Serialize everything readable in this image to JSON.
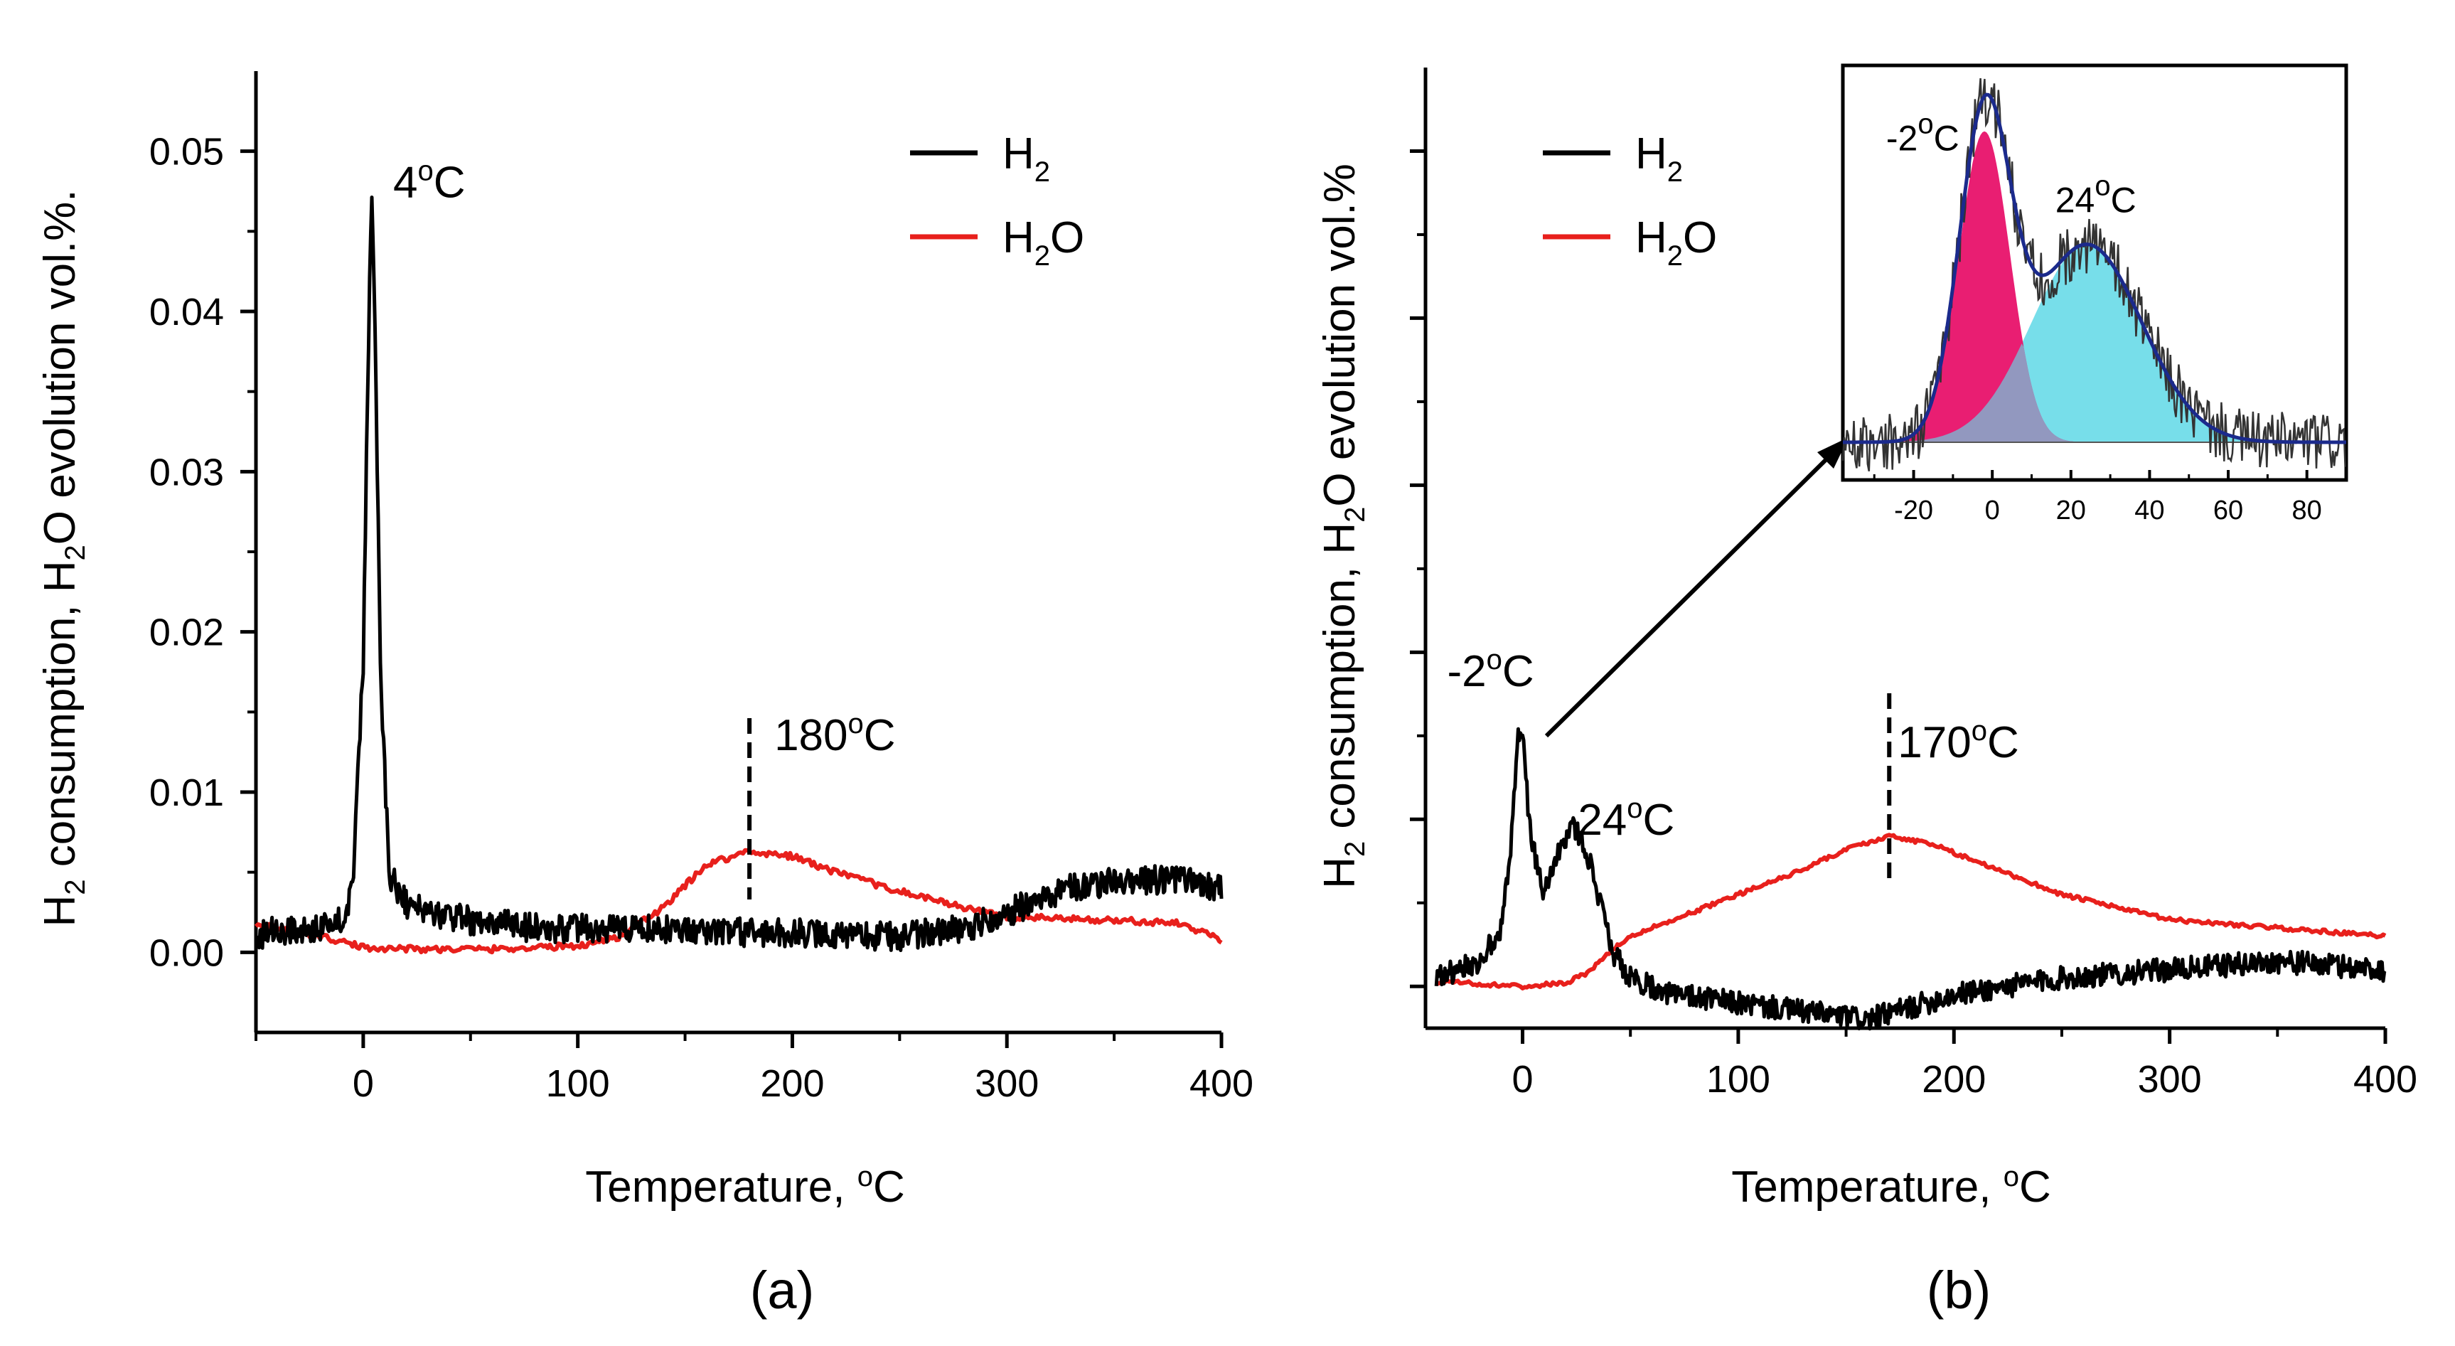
{
  "chart_data": [
    {
      "panel": "(a)",
      "type": "line",
      "xlabel": "Temperature, °C",
      "ylabel_parts": [
        "H",
        "2",
        " consumption, H",
        "2",
        "O evolution vol.%."
      ],
      "xlim": [
        -50,
        400
      ],
      "ylim": [
        -0.005,
        0.055
      ],
      "xticks": [
        0,
        100,
        200,
        300,
        400
      ],
      "yticks": [
        0.0,
        0.01,
        0.02,
        0.03,
        0.04,
        0.05
      ],
      "ytick_labels": [
        "0.00",
        "0.01",
        "0.02",
        "0.03",
        "0.04",
        "0.05"
      ],
      "series": [
        {
          "name": "H2",
          "name_main": "H",
          "name_sub": "2",
          "name_rest": "",
          "color": "#000000",
          "x": [
            -50,
            -40,
            -30,
            -20,
            -10,
            -5,
            0,
            2,
            4,
            6,
            8,
            12,
            20,
            30,
            50,
            80,
            100,
            150,
            180,
            200,
            250,
            280,
            300,
            330,
            350,
            380,
            400
          ],
          "y": [
            0.001,
            0.0015,
            0.0012,
            0.0015,
            0.002,
            0.004,
            0.018,
            0.035,
            0.048,
            0.035,
            0.018,
            0.005,
            0.003,
            0.0025,
            0.002,
            0.0015,
            0.0015,
            0.0015,
            0.0012,
            0.0012,
            0.001,
            0.0015,
            0.0025,
            0.004,
            0.0045,
            0.0045,
            0.004
          ]
        },
        {
          "name": "H2O",
          "name_main": "H",
          "name_sub": "2",
          "name_rest": "O",
          "color": "#e8201c",
          "x": [
            -50,
            -30,
            -20,
            0,
            30,
            60,
            100,
            120,
            140,
            160,
            180,
            200,
            220,
            250,
            280,
            300,
            350,
            380,
            400
          ],
          "y": [
            0.0018,
            0.0012,
            0.001,
            0.0003,
            0.0002,
            0.0002,
            0.0004,
            0.001,
            0.0028,
            0.0055,
            0.0063,
            0.006,
            0.005,
            0.0038,
            0.0028,
            0.0022,
            0.002,
            0.0018,
            0.0008
          ]
        }
      ],
      "annotations": [
        {
          "value": "4",
          "unit": "°C",
          "x": 4,
          "y": 0.048
        },
        {
          "value": "180",
          "unit": "°C",
          "x": 180,
          "y": 0.0063
        }
      ]
    },
    {
      "panel": "(b)",
      "type": "line",
      "xlabel": "Temperature, °C",
      "ylabel_parts": [
        "H",
        "2",
        " consumption, H",
        "2",
        "O evolution vol.%"
      ],
      "xlim": [
        -45,
        400
      ],
      "xticks": [
        0,
        100,
        200,
        300,
        400
      ],
      "ylim": [
        -0.25,
        5.5
      ],
      "ytick_count": 6,
      "series": [
        {
          "name": "H2",
          "name_main": "H",
          "name_sub": "2",
          "name_rest": "",
          "color": "#000000",
          "x": [
            -40,
            -20,
            -10,
            -5,
            -2,
            0,
            3,
            6,
            10,
            14,
            18,
            24,
            30,
            36,
            42,
            50,
            70,
            100,
            130,
            160,
            200,
            250,
            300,
            350,
            400
          ],
          "y": [
            0.05,
            0.15,
            0.35,
            0.9,
            1.5,
            1.5,
            1.0,
            0.75,
            0.55,
            0.7,
            0.85,
            0.95,
            0.8,
            0.5,
            0.2,
            0.05,
            -0.05,
            -0.1,
            -0.15,
            -0.2,
            -0.05,
            0.05,
            0.1,
            0.15,
            0.1
          ]
        },
        {
          "name": "H2O",
          "name_main": "H",
          "name_sub": "2",
          "name_rest": "O",
          "color": "#e8201c",
          "x": [
            -40,
            0,
            20,
            30,
            40,
            50,
            80,
            100,
            130,
            150,
            170,
            190,
            220,
            250,
            300,
            350,
            400
          ],
          "y": [
            0.03,
            0.0,
            0.02,
            0.08,
            0.2,
            0.3,
            0.45,
            0.55,
            0.7,
            0.82,
            0.9,
            0.85,
            0.7,
            0.55,
            0.4,
            0.35,
            0.3
          ]
        }
      ],
      "annotations": [
        {
          "value": "-2",
          "unit": "°C",
          "x": -2,
          "y": 1.5
        },
        {
          "value": "24",
          "unit": "°C",
          "x": 24,
          "y": 0.95
        },
        {
          "value": "170",
          "unit": "°C",
          "x": 170,
          "y": 0.9
        }
      ],
      "inset": {
        "xlim": [
          -38,
          90
        ],
        "xticks": [
          -20,
          0,
          20,
          40,
          60,
          80
        ],
        "ylim": [
          -0.2,
          2.0
        ],
        "peaks": [
          {
            "center": -2,
            "amplitude": 1.65,
            "width": 6.5,
            "fill": "#e8126a",
            "label_value": "-2",
            "label_unit": "°C"
          },
          {
            "center": 24,
            "amplitude": 1.05,
            "width": 14,
            "fill": "#5fd8e6",
            "label_value": "24",
            "label_unit": "°C"
          }
        ],
        "fit_color": "#1b2a8c",
        "data_color": "#333333"
      }
    }
  ],
  "panel_labels": [
    "(a)",
    "(b)"
  ]
}
